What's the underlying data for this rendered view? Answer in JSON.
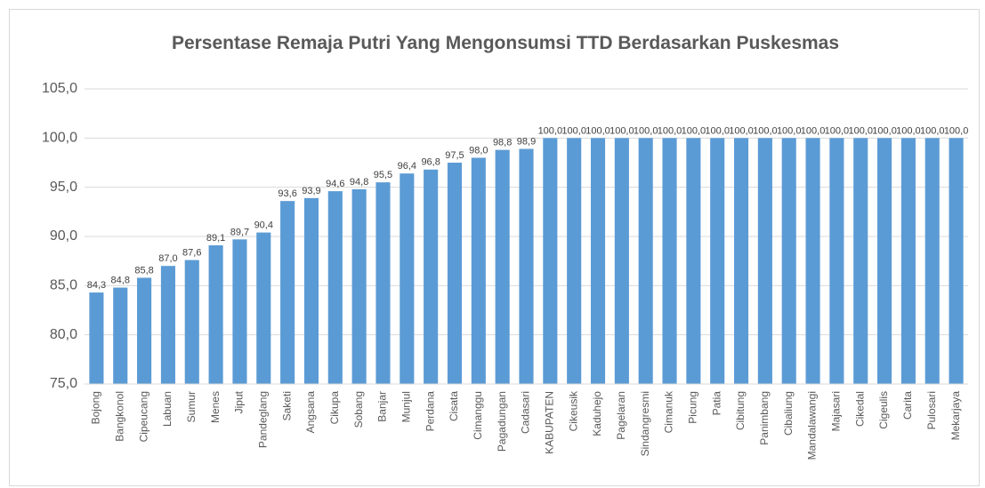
{
  "chart_data": {
    "type": "bar",
    "title": "Persentase Remaja Putri Yang Mengonsumsi TTD Berdasarkan Puskesmas",
    "categories": [
      "Bojong",
      "Bangkonol",
      "Cipeucang",
      "Labuan",
      "Sumur",
      "Menes",
      "Jiput",
      "Pandeglang",
      "Saketi",
      "Angsana",
      "Cikupa",
      "Sobang",
      "Banjar",
      "Munjul",
      "Perdana",
      "Cisata",
      "Cimanggu",
      "Pagadungan",
      "Cadasari",
      "KABUPATEN",
      "Cikeusik",
      "Kaduhejo",
      "Pagelaran",
      "Sindangresmi",
      "Cimanuk",
      "Picung",
      "Patia",
      "Cibitung",
      "Panimbang",
      "Cibaliung",
      "Mandalawangi",
      "Majasari",
      "Cikedal",
      "Cigeulis",
      "Carita",
      "Pulosari",
      "Mekarjaya"
    ],
    "values": [
      84.3,
      84.8,
      85.8,
      87.0,
      87.6,
      89.1,
      89.7,
      90.4,
      93.6,
      93.9,
      94.6,
      94.8,
      95.5,
      96.4,
      96.8,
      97.5,
      98.0,
      98.8,
      98.9,
      100,
      100,
      100,
      100,
      100,
      100,
      100,
      100,
      100,
      100,
      100,
      100,
      100,
      100,
      100,
      100,
      100,
      100
    ],
    "value_labels": [
      "84,3",
      "84,8",
      "85,8",
      "87,0",
      "87,6",
      "89,1",
      "89,7",
      "90,4",
      "93,6",
      "93,9",
      "94,6",
      "94,8",
      "95,5",
      "96,4",
      "96,8",
      "97,5",
      "98,0",
      "98,8",
      "98,9",
      "100,0",
      "100,0",
      "100,0",
      "100,0",
      "100,0",
      "100,0",
      "100,0",
      "100,0",
      "100,0",
      "100,0",
      "100,0",
      "100,0",
      "100,0",
      "100,0",
      "100,0",
      "100,0",
      "100,0",
      "100,0"
    ],
    "color": "#5b9bd5",
    "ylim": [
      75,
      105
    ],
    "yticks": [
      {
        "value": 75,
        "label": "75,0"
      },
      {
        "value": 80,
        "label": "80,0"
      },
      {
        "value": 85,
        "label": "85,0"
      },
      {
        "value": 90,
        "label": "90,0"
      },
      {
        "value": 95,
        "label": "95,0"
      },
      {
        "value": 100,
        "label": "100,0"
      },
      {
        "value": 105,
        "label": "105,0"
      }
    ],
    "grid": true
  }
}
